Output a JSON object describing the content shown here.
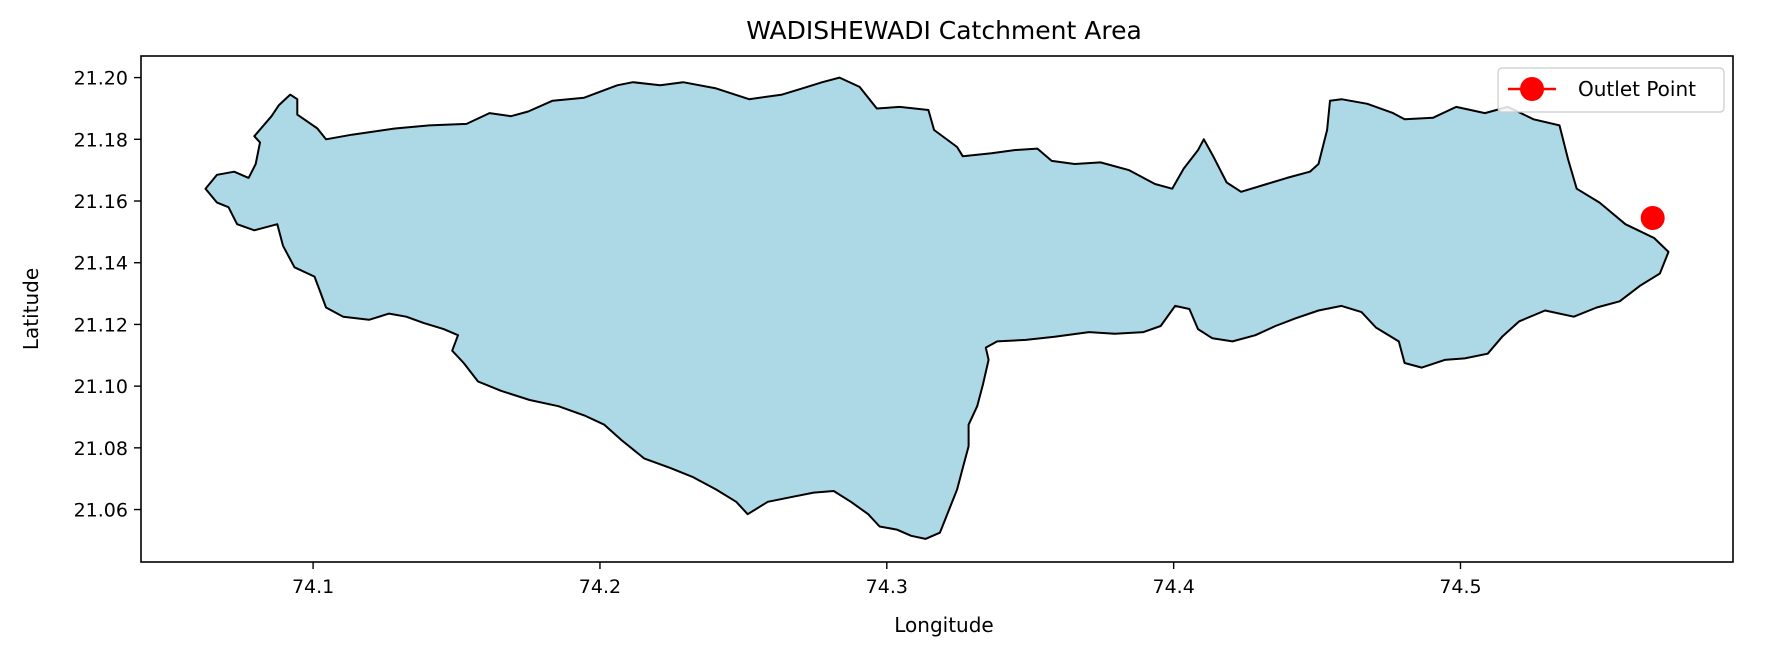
{
  "chart_data": {
    "type": "map",
    "title": "WADISHEWADI Catchment Area",
    "xlabel": "Longitude",
    "ylabel": "Latitude",
    "xlim": [
      74.04,
      74.595
    ],
    "ylim": [
      21.043,
      21.207
    ],
    "xticks": [
      74.1,
      74.2,
      74.3,
      74.4,
      74.5
    ],
    "xtick_labels": [
      "74.1",
      "74.2",
      "74.3",
      "74.4",
      "74.5"
    ],
    "yticks": [
      21.06,
      21.08,
      21.1,
      21.12,
      21.14,
      21.16,
      21.18,
      21.2
    ],
    "ytick_labels": [
      "21.06",
      "21.08",
      "21.10",
      "21.12",
      "21.14",
      "21.16",
      "21.18",
      "21.20"
    ],
    "grid": false,
    "legend": {
      "position": "top-right",
      "entries": [
        {
          "label": "Outlet Point",
          "marker": "circle",
          "color": "#ff0000"
        }
      ]
    },
    "catchment": {
      "fill": "#add8e6",
      "edge": "#000000",
      "boundary": [
        [
          74.0625,
          21.164
        ],
        [
          74.0665,
          21.1685
        ],
        [
          74.0725,
          21.1695
        ],
        [
          74.0775,
          21.1675
        ],
        [
          74.08,
          21.172
        ],
        [
          74.0815,
          21.179
        ],
        [
          74.0795,
          21.181
        ],
        [
          74.0855,
          21.1875
        ],
        [
          74.088,
          21.191
        ],
        [
          74.092,
          21.1945
        ],
        [
          74.0945,
          21.193
        ],
        [
          74.0945,
          21.188
        ],
        [
          74.1015,
          21.1835
        ],
        [
          74.1045,
          21.18
        ],
        [
          74.1135,
          21.1815
        ],
        [
          74.1285,
          21.1835
        ],
        [
          74.1405,
          21.1845
        ],
        [
          74.1535,
          21.185
        ],
        [
          74.1615,
          21.1885
        ],
        [
          74.169,
          21.1875
        ],
        [
          74.175,
          21.189
        ],
        [
          74.1835,
          21.1925
        ],
        [
          74.1945,
          21.1935
        ],
        [
          74.206,
          21.1975
        ],
        [
          74.2115,
          21.1985
        ],
        [
          74.221,
          21.1975
        ],
        [
          74.229,
          21.1985
        ],
        [
          74.2405,
          21.1965
        ],
        [
          74.252,
          21.193
        ],
        [
          74.2635,
          21.1945
        ],
        [
          74.2705,
          21.1965
        ],
        [
          74.2775,
          21.1985
        ],
        [
          74.2835,
          21.2
        ],
        [
          74.2905,
          21.197
        ],
        [
          74.2965,
          21.19
        ],
        [
          74.3045,
          21.1905
        ],
        [
          74.3145,
          21.1895
        ],
        [
          74.3165,
          21.183
        ],
        [
          74.3245,
          21.1775
        ],
        [
          74.3265,
          21.1745
        ],
        [
          74.3365,
          21.1755
        ],
        [
          74.3445,
          21.1765
        ],
        [
          74.3525,
          21.177
        ],
        [
          74.3575,
          21.173
        ],
        [
          74.3655,
          21.172
        ],
        [
          74.3745,
          21.1725
        ],
        [
          74.3845,
          21.17
        ],
        [
          74.3935,
          21.1655
        ],
        [
          74.3995,
          21.164
        ],
        [
          74.4035,
          21.1705
        ],
        [
          74.4085,
          21.1765
        ],
        [
          74.4105,
          21.18
        ],
        [
          74.4135,
          21.175
        ],
        [
          74.4185,
          21.166
        ],
        [
          74.4235,
          21.163
        ],
        [
          74.4325,
          21.1655
        ],
        [
          74.4395,
          21.1675
        ],
        [
          74.4475,
          21.1695
        ],
        [
          74.4505,
          21.172
        ],
        [
          74.4535,
          21.183
        ],
        [
          74.4545,
          21.1925
        ],
        [
          74.4585,
          21.193
        ],
        [
          74.4675,
          21.1915
        ],
        [
          74.4765,
          21.1885
        ],
        [
          74.4805,
          21.1865
        ],
        [
          74.4905,
          21.187
        ],
        [
          74.4985,
          21.1905
        ],
        [
          74.5085,
          21.1885
        ],
        [
          74.5165,
          21.1905
        ],
        [
          74.5255,
          21.1865
        ],
        [
          74.5345,
          21.1845
        ],
        [
          74.5375,
          21.1735
        ],
        [
          74.5405,
          21.164
        ],
        [
          74.5485,
          21.1595
        ],
        [
          74.5575,
          21.1525
        ],
        [
          74.5675,
          21.148
        ],
        [
          74.5725,
          21.1435
        ],
        [
          74.5695,
          21.1365
        ],
        [
          74.5625,
          21.1325
        ],
        [
          74.5555,
          21.1275
        ],
        [
          74.5475,
          21.1255
        ],
        [
          74.5395,
          21.1225
        ],
        [
          74.5295,
          21.1245
        ],
        [
          74.5205,
          21.121
        ],
        [
          74.5145,
          21.116
        ],
        [
          74.5095,
          21.1105
        ],
        [
          74.5015,
          21.109
        ],
        [
          74.4945,
          21.1085
        ],
        [
          74.4865,
          21.106
        ],
        [
          74.4805,
          21.1075
        ],
        [
          74.4785,
          21.1145
        ],
        [
          74.4705,
          21.119
        ],
        [
          74.4655,
          21.124
        ],
        [
          74.4585,
          21.126
        ],
        [
          74.4505,
          21.1245
        ],
        [
          74.4425,
          21.122
        ],
        [
          74.4355,
          21.1195
        ],
        [
          74.4285,
          21.1165
        ],
        [
          74.4205,
          21.1145
        ],
        [
          74.4135,
          21.1155
        ],
        [
          74.4085,
          21.1185
        ],
        [
          74.4055,
          21.125
        ],
        [
          74.4005,
          21.126
        ],
        [
          74.3955,
          21.1195
        ],
        [
          74.3895,
          21.1175
        ],
        [
          74.3795,
          21.117
        ],
        [
          74.3705,
          21.1175
        ],
        [
          74.3585,
          21.116
        ],
        [
          74.3485,
          21.115
        ],
        [
          74.3385,
          21.1145
        ],
        [
          74.3345,
          21.1125
        ],
        [
          74.3355,
          21.1085
        ],
        [
          74.3335,
          21.1005
        ],
        [
          74.3315,
          21.0935
        ],
        [
          74.3285,
          21.0875
        ],
        [
          74.3285,
          21.0805
        ],
        [
          74.3265,
          21.0735
        ],
        [
          74.3245,
          21.0665
        ],
        [
          74.3215,
          21.0595
        ],
        [
          74.3185,
          21.0525
        ],
        [
          74.3135,
          21.0505
        ],
        [
          74.3085,
          21.0515
        ],
        [
          74.3035,
          21.0535
        ],
        [
          74.2975,
          21.0545
        ],
        [
          74.2935,
          21.0585
        ],
        [
          74.2875,
          21.0625
        ],
        [
          74.2815,
          21.066
        ],
        [
          74.2745,
          21.0655
        ],
        [
          74.2665,
          21.064
        ],
        [
          74.2585,
          21.0625
        ],
        [
          74.2515,
          21.0585
        ],
        [
          74.2475,
          21.0625
        ],
        [
          74.2405,
          21.0665
        ],
        [
          74.2325,
          21.0705
        ],
        [
          74.2245,
          21.0735
        ],
        [
          74.2155,
          21.0765
        ],
        [
          74.2075,
          21.0825
        ],
        [
          74.2015,
          21.0875
        ],
        [
          74.1945,
          21.0905
        ],
        [
          74.1855,
          21.0935
        ],
        [
          74.1755,
          21.0955
        ],
        [
          74.1655,
          21.0985
        ],
        [
          74.1575,
          21.1015
        ],
        [
          74.1525,
          21.1075
        ],
        [
          74.1485,
          21.1115
        ],
        [
          74.1505,
          21.1165
        ],
        [
          74.1455,
          21.1185
        ],
        [
          74.1385,
          21.1205
        ],
        [
          74.1325,
          21.1225
        ],
        [
          74.1265,
          21.1235
        ],
        [
          74.1195,
          21.1215
        ],
        [
          74.1105,
          21.1225
        ],
        [
          74.1045,
          21.1255
        ],
        [
          74.1025,
          21.1305
        ],
        [
          74.1005,
          21.1355
        ],
        [
          74.0935,
          21.1385
        ],
        [
          74.0895,
          21.1455
        ],
        [
          74.0875,
          21.1525
        ],
        [
          74.0795,
          21.1505
        ],
        [
          74.0735,
          21.1525
        ],
        [
          74.0705,
          21.158
        ],
        [
          74.0665,
          21.1595
        ],
        [
          74.0625,
          21.164
        ]
      ]
    },
    "outlet_point": {
      "label": "Outlet Point",
      "lon": 74.567,
      "lat": 21.1545,
      "color": "#ff0000"
    }
  }
}
